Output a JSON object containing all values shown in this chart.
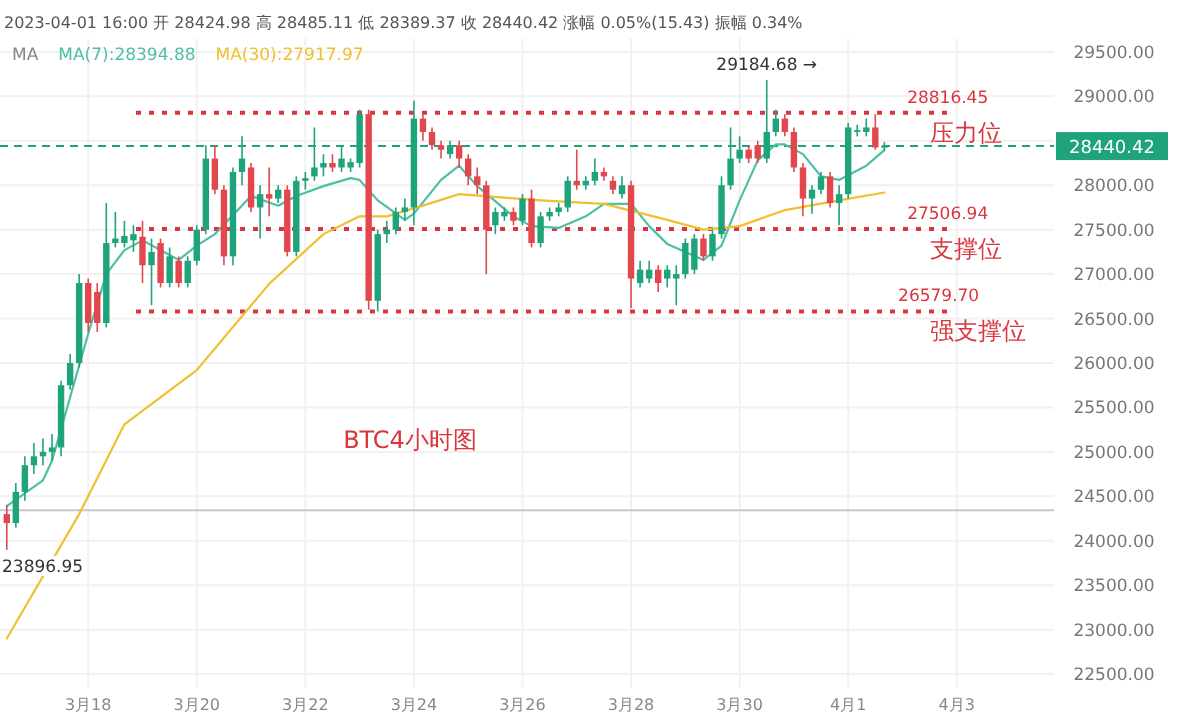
{
  "chart_data": {
    "type": "candlestick",
    "subtitle": "2023-04-01 16:00 开 28424.98 高 28485.11 低 28389.37 收 28440.42 涨幅 0.05%(15.43) 振幅 0.34%",
    "legend_title": "MA",
    "legend": "top",
    "grid": true,
    "x": [
      "2023-03-16T12:00",
      "2023-03-16T16:00",
      "2023-03-16T20:00",
      "2023-03-17T00:00",
      "2023-03-17T04:00",
      "2023-03-17T08:00",
      "2023-03-17T12:00",
      "2023-03-17T16:00",
      "2023-03-17T20:00",
      "2023-03-18T00:00",
      "2023-03-18T04:00",
      "2023-03-18T08:00",
      "2023-03-18T12:00",
      "2023-03-18T16:00",
      "2023-03-18T20:00",
      "2023-03-19T00:00",
      "2023-03-19T04:00",
      "2023-03-19T08:00",
      "2023-03-19T12:00",
      "2023-03-19T16:00",
      "2023-03-19T20:00",
      "2023-03-20T00:00",
      "2023-03-20T04:00",
      "2023-03-20T08:00",
      "2023-03-20T12:00",
      "2023-03-20T16:00",
      "2023-03-20T20:00",
      "2023-03-21T00:00",
      "2023-03-21T04:00",
      "2023-03-21T08:00",
      "2023-03-21T12:00",
      "2023-03-21T16:00",
      "2023-03-21T20:00",
      "2023-03-22T00:00",
      "2023-03-22T04:00",
      "2023-03-22T08:00",
      "2023-03-22T12:00",
      "2023-03-22T16:00",
      "2023-03-22T20:00",
      "2023-03-23T00:00",
      "2023-03-23T04:00",
      "2023-03-23T08:00",
      "2023-03-23T12:00",
      "2023-03-23T16:00",
      "2023-03-23T20:00",
      "2023-03-24T00:00",
      "2023-03-24T04:00",
      "2023-03-24T08:00",
      "2023-03-24T12:00",
      "2023-03-24T16:00",
      "2023-03-24T20:00",
      "2023-03-25T00:00",
      "2023-03-25T04:00",
      "2023-03-25T08:00",
      "2023-03-25T12:00",
      "2023-03-25T16:00",
      "2023-03-25T20:00",
      "2023-03-26T00:00",
      "2023-03-26T04:00",
      "2023-03-26T08:00",
      "2023-03-26T12:00",
      "2023-03-26T16:00",
      "2023-03-26T20:00",
      "2023-03-27T00:00",
      "2023-03-27T04:00",
      "2023-03-27T08:00",
      "2023-03-27T12:00",
      "2023-03-27T16:00",
      "2023-03-27T20:00",
      "2023-03-28T00:00",
      "2023-03-28T04:00",
      "2023-03-28T08:00",
      "2023-03-28T12:00",
      "2023-03-28T16:00",
      "2023-03-28T20:00",
      "2023-03-29T00:00",
      "2023-03-29T04:00",
      "2023-03-29T08:00",
      "2023-03-29T12:00",
      "2023-03-29T16:00",
      "2023-03-29T20:00",
      "2023-03-30T00:00",
      "2023-03-30T04:00",
      "2023-03-30T08:00",
      "2023-03-30T12:00",
      "2023-03-30T16:00",
      "2023-03-30T20:00",
      "2023-03-31T00:00",
      "2023-03-31T04:00",
      "2023-03-31T08:00",
      "2023-03-31T12:00",
      "2023-03-31T16:00",
      "2023-03-31T20:00",
      "2023-04-01T00:00",
      "2023-04-01T04:00",
      "2023-04-01T08:00",
      "2023-04-01T12:00",
      "2023-04-01T16:00"
    ],
    "ohlc": [
      [
        24300,
        24400,
        23896.95,
        24200
      ],
      [
        24200,
        24650,
        24150,
        24550
      ],
      [
        24550,
        24950,
        24450,
        24850
      ],
      [
        24850,
        25100,
        24750,
        24950
      ],
      [
        24950,
        25150,
        24850,
        25000
      ],
      [
        25000,
        25200,
        24900,
        25050
      ],
      [
        25050,
        25800,
        24950,
        25750
      ],
      [
        25750,
        26100,
        25700,
        26000
      ],
      [
        26000,
        27000,
        25950,
        26900
      ],
      [
        26900,
        26950,
        26350,
        26450
      ],
      [
        26800,
        26900,
        26350,
        26450
      ],
      [
        26450,
        27800,
        26400,
        27350
      ],
      [
        27350,
        27700,
        27300,
        27400
      ],
      [
        27350,
        27600,
        27300,
        27430
      ],
      [
        27380,
        27550,
        27250,
        27450
      ],
      [
        27420,
        27600,
        26900,
        27100
      ],
      [
        27100,
        27400,
        26650,
        27250
      ],
      [
        27350,
        27400,
        26850,
        26900
      ],
      [
        26900,
        27300,
        26850,
        27200
      ],
      [
        27150,
        27200,
        26850,
        26900
      ],
      [
        26900,
        27200,
        26850,
        27150
      ],
      [
        27150,
        27550,
        27100,
        27500
      ],
      [
        27500,
        28450,
        27450,
        28300
      ],
      [
        28300,
        28450,
        27900,
        27950
      ],
      [
        27950,
        28000,
        27100,
        27200
      ],
      [
        27200,
        28200,
        27100,
        28150
      ],
      [
        28150,
        28550,
        28000,
        28300
      ],
      [
        28200,
        28250,
        27700,
        27750
      ],
      [
        27750,
        28000,
        27400,
        27900
      ],
      [
        27900,
        28200,
        27650,
        27850
      ],
      [
        27850,
        28000,
        27800,
        27950
      ],
      [
        27950,
        28000,
        27200,
        27250
      ],
      [
        27250,
        28100,
        27200,
        28050
      ],
      [
        28050,
        28150,
        27950,
        28080
      ],
      [
        28100,
        28650,
        28050,
        28200
      ],
      [
        28200,
        28350,
        28100,
        28250
      ],
      [
        28250,
        28350,
        28150,
        28200
      ],
      [
        28200,
        28450,
        28150,
        28300
      ],
      [
        28200,
        28300,
        28150,
        28260
      ],
      [
        28250,
        28850,
        28200,
        28800
      ],
      [
        28800,
        28850,
        26600,
        26700
      ],
      [
        26700,
        27500,
        26579.7,
        27450
      ],
      [
        27450,
        27600,
        27350,
        27500
      ],
      [
        27500,
        27750,
        27450,
        27700
      ],
      [
        27700,
        27850,
        27600,
        27750
      ],
      [
        27750,
        28950,
        27550,
        28750
      ],
      [
        28750,
        28800,
        28500,
        28600
      ],
      [
        28600,
        28650,
        28400,
        28450
      ],
      [
        28450,
        28500,
        28300,
        28400
      ],
      [
        28350,
        28500,
        28300,
        28450
      ],
      [
        28450,
        28500,
        28200,
        28300
      ],
      [
        28300,
        28350,
        28000,
        28100
      ],
      [
        28100,
        28200,
        27900,
        28000
      ],
      [
        28000,
        28050,
        27000,
        27500
      ],
      [
        27550,
        27750,
        27450,
        27700
      ],
      [
        27650,
        27750,
        27600,
        27700
      ],
      [
        27700,
        27750,
        27550,
        27600
      ],
      [
        27600,
        27900,
        27550,
        27850
      ],
      [
        27850,
        27950,
        27300,
        27350
      ],
      [
        27350,
        27700,
        27300,
        27650
      ],
      [
        27650,
        27750,
        27600,
        27700
      ],
      [
        27700,
        27800,
        27650,
        27750
      ],
      [
        27750,
        28100,
        27700,
        28050
      ],
      [
        28050,
        28400,
        27950,
        28000
      ],
      [
        28000,
        28100,
        27950,
        28050
      ],
      [
        28050,
        28300,
        28000,
        28150
      ],
      [
        28150,
        28200,
        28050,
        28100
      ],
      [
        28050,
        28100,
        27900,
        27950
      ],
      [
        27900,
        28100,
        27850,
        28000
      ],
      [
        28000,
        28050,
        26620,
        26950
      ],
      [
        26900,
        27150,
        26850,
        27050
      ],
      [
        26950,
        27150,
        26900,
        27050
      ],
      [
        27050,
        27100,
        26800,
        26900
      ],
      [
        26950,
        27100,
        26850,
        27050
      ],
      [
        26950,
        27100,
        26650,
        27000
      ],
      [
        27000,
        27400,
        26950,
        27350
      ],
      [
        27050,
        27450,
        27000,
        27400
      ],
      [
        27400,
        27450,
        27150,
        27200
      ],
      [
        27200,
        27500,
        27150,
        27450
      ],
      [
        27450,
        28100,
        27400,
        28000
      ],
      [
        28000,
        28650,
        27950,
        28300
      ],
      [
        28300,
        28550,
        28250,
        28400
      ],
      [
        28400,
        28450,
        28250,
        28300
      ],
      [
        28450,
        28500,
        28250,
        28300
      ],
      [
        28300,
        29184.68,
        28250,
        28600
      ],
      [
        28600,
        28850,
        28550,
        28750
      ],
      [
        28750,
        28800,
        28550,
        28600
      ],
      [
        28600,
        28650,
        28150,
        28200
      ],
      [
        28200,
        28250,
        27650,
        27850
      ],
      [
        27850,
        28000,
        27680,
        27950
      ],
      [
        27950,
        28150,
        27900,
        28100
      ],
      [
        28100,
        28150,
        27750,
        27800
      ],
      [
        27800,
        28000,
        27550,
        27900
      ],
      [
        27900,
        28700,
        27850,
        28650
      ],
      [
        28600,
        28680,
        28550,
        28620
      ],
      [
        28600,
        28750,
        28550,
        28650
      ],
      [
        28650,
        28800,
        28400,
        28425
      ],
      [
        28424.98,
        28485.11,
        28389.37,
        28440.42
      ]
    ],
    "colors": [
      "#e2474d",
      "#1fa37a",
      "#1fa37a",
      "#1fa37a",
      "#1fa37a",
      "#1fa37a",
      "#1fa37a",
      "#1fa37a",
      "#1fa37a",
      "#e2474d",
      "#e2474d",
      "#1fa37a",
      "#1fa37a",
      "#1fa37a",
      "#1fa37a",
      "#e2474d",
      "#1fa37a",
      "#e2474d",
      "#1fa37a",
      "#e2474d",
      "#1fa37a",
      "#1fa37a",
      "#1fa37a",
      "#e2474d",
      "#e2474d",
      "#1fa37a",
      "#1fa37a",
      "#e2474d",
      "#1fa37a",
      "#e2474d",
      "#1fa37a",
      "#e2474d",
      "#1fa37a",
      "#1fa37a",
      "#1fa37a",
      "#1fa37a",
      "#e2474d",
      "#1fa37a",
      "#1fa37a",
      "#1fa37a",
      "#e2474d",
      "#1fa37a",
      "#1fa37a",
      "#1fa37a",
      "#1fa37a",
      "#1fa37a",
      "#e2474d",
      "#e2474d",
      "#e2474d",
      "#1fa37a",
      "#e2474d",
      "#e2474d",
      "#e2474d",
      "#e2474d",
      "#1fa37a",
      "#1fa37a",
      "#e2474d",
      "#1fa37a",
      "#e2474d",
      "#1fa37a",
      "#1fa37a",
      "#1fa37a",
      "#1fa37a",
      "#e2474d",
      "#1fa37a",
      "#1fa37a",
      "#e2474d",
      "#e2474d",
      "#1fa37a",
      "#e2474d",
      "#1fa37a",
      "#1fa37a",
      "#e2474d",
      "#1fa37a",
      "#1fa37a",
      "#1fa37a",
      "#1fa37a",
      "#e2474d",
      "#1fa37a",
      "#1fa37a",
      "#1fa37a",
      "#1fa37a",
      "#e2474d",
      "#e2474d",
      "#1fa37a",
      "#1fa37a",
      "#e2474d",
      "#e2474d",
      "#e2474d",
      "#1fa37a",
      "#1fa37a",
      "#e2474d",
      "#1fa37a",
      "#1fa37a",
      "#1fa37a",
      "#1fa37a",
      "#e2474d",
      "#1fa37a"
    ],
    "series": [
      {
        "type": "line",
        "name": "MA(7):28394.88",
        "color": "#4dbfa6",
        "x": [
          "2023-03-16T12:00",
          "2023-03-17T04:00",
          "2023-03-17T08:00",
          "2023-03-18T00:00",
          "2023-03-18T08:00",
          "2023-03-18T16:00",
          "2023-03-19T00:00",
          "2023-03-19T16:00",
          "2023-03-20T00:00",
          "2023-03-20T08:00",
          "2023-03-21T00:00",
          "2023-03-21T12:00",
          "2023-03-21T20:00",
          "2023-03-22T08:00",
          "2023-03-22T20:00",
          "2023-03-23T00:00",
          "2023-03-23T08:00",
          "2023-03-23T20:00",
          "2023-03-24T00:00",
          "2023-03-24T12:00",
          "2023-03-24T20:00",
          "2023-03-25T04:00",
          "2023-03-25T20:00",
          "2023-03-26T04:00",
          "2023-03-26T16:00",
          "2023-03-27T04:00",
          "2023-03-27T12:00",
          "2023-03-28T00:00",
          "2023-03-28T08:00",
          "2023-03-28T16:00",
          "2023-03-29T08:00",
          "2023-03-29T16:00",
          "2023-03-30T00:00",
          "2023-03-30T08:00",
          "2023-03-30T16:00",
          "2023-03-30T20:00",
          "2023-03-31T04:00",
          "2023-03-31T12:00",
          "2023-03-31T20:00",
          "2023-04-01T08:00",
          "2023-04-01T16:00"
        ],
        "values": [
          24390,
          24680,
          24900,
          26330,
          27000,
          27270,
          27380,
          27160,
          27320,
          27450,
          27880,
          27770,
          27880,
          27990,
          28080,
          28060,
          27830,
          27610,
          27680,
          28060,
          28220,
          27990,
          27650,
          27540,
          27520,
          27650,
          27790,
          27790,
          27540,
          27340,
          27160,
          27320,
          27830,
          28280,
          28460,
          28460,
          28350,
          28100,
          28060,
          28220,
          28394.88
        ]
      },
      {
        "type": "line",
        "name": "MA(30):27917.97",
        "color": "#f0c030",
        "x": [
          "2023-03-16T12:00",
          "2023-03-17T20:00",
          "2023-03-18T16:00",
          "2023-03-20T00:00",
          "2023-03-21T08:00",
          "2023-03-22T08:00",
          "2023-03-23T00:00",
          "2023-03-23T12:00",
          "2023-03-24T04:00",
          "2023-03-24T20:00",
          "2023-03-25T16:00",
          "2023-03-26T08:00",
          "2023-03-27T12:00",
          "2023-03-28T16:00",
          "2023-03-29T08:00",
          "2023-03-30T00:00",
          "2023-03-30T20:00",
          "2023-03-31T20:00",
          "2023-04-01T16:00"
        ],
        "values": [
          22900,
          24300,
          25310,
          25920,
          26890,
          27450,
          27650,
          27650,
          27770,
          27900,
          27860,
          27830,
          27790,
          27610,
          27500,
          27540,
          27720,
          27830,
          27917.97
        ]
      }
    ],
    "xlim": [
      "2023-03-16T09:00",
      "2023-04-04T19:00"
    ],
    "xticks": [
      {
        "value": "2023-03-18",
        "label": "3月18"
      },
      {
        "value": "2023-03-20",
        "label": "3月20"
      },
      {
        "value": "2023-03-22",
        "label": "3月22"
      },
      {
        "value": "2023-03-24",
        "label": "3月24"
      },
      {
        "value": "2023-03-26",
        "label": "3月26"
      },
      {
        "value": "2023-03-28",
        "label": "3月28"
      },
      {
        "value": "2023-03-30",
        "label": "3月30"
      },
      {
        "value": "2023-04-01",
        "label": "4月1"
      },
      {
        "value": "2023-04-03",
        "label": "4月3"
      }
    ],
    "ylim": [
      22350,
      29650
    ],
    "yticks": [
      {
        "value": 22500,
        "label": "22500.00"
      },
      {
        "value": 23000,
        "label": "23000.00"
      },
      {
        "value": 23500,
        "label": "23500.00"
      },
      {
        "value": 24000,
        "label": "24000.00"
      },
      {
        "value": 24500,
        "label": "24500.00"
      },
      {
        "value": 25000,
        "label": "25000.00"
      },
      {
        "value": 25500,
        "label": "25500.00"
      },
      {
        "value": 26000,
        "label": "26000.00"
      },
      {
        "value": 26500,
        "label": "26500.00"
      },
      {
        "value": 27000,
        "label": "27000.00"
      },
      {
        "value": 27500,
        "label": "27500.00"
      },
      {
        "value": 28000,
        "label": "28000.00"
      },
      {
        "value": 28500,
        "label": null
      },
      {
        "value": 29000,
        "label": "29000.00"
      },
      {
        "value": 29500,
        "label": "29500.00"
      }
    ],
    "ref_lines": [
      {
        "axis": "y",
        "value": 28816.45,
        "label": "压力位",
        "color": "#d9363e",
        "line_style": "dotted"
      },
      {
        "axis": "y",
        "value": 27506.94,
        "label": "支撑位",
        "color": "#d9363e",
        "line_style": "dotted"
      },
      {
        "axis": "y",
        "value": 26579.7,
        "label": "强支撑位",
        "color": "#d9363e",
        "line_style": "dotted"
      },
      {
        "axis": "y",
        "value": 28440.42,
        "label": "28440.42",
        "color": "#1fa37a",
        "line_style": "dashed"
      },
      {
        "axis": "y",
        "value": 24342,
        "color": "#c8c8c8",
        "line_style": "solid"
      }
    ],
    "annotations": [
      {
        "text": "29184.68 →",
        "x": "2023-03-30T12:00",
        "y": 29184.68
      },
      {
        "text": "23896.95",
        "x": "2023-03-16T12:00",
        "y": 23896.95
      },
      {
        "text": "28816.45",
        "x": "2023-04-02T20:00",
        "y": 28816.45
      },
      {
        "text": "27506.94",
        "x": "2023-04-02T20:00",
        "y": 27506.94
      },
      {
        "text": "26579.70",
        "x": "2023-04-02T16:00",
        "y": 26579.7
      },
      "BTC4小时图"
    ]
  }
}
